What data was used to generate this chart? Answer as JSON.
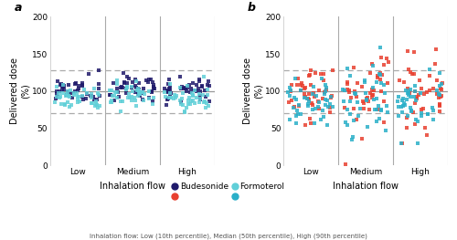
{
  "title_a": "a",
  "title_b": "b",
  "ylabel": "Delivered dose\n(%)",
  "xlabel": "Inhalation flow",
  "xtick_labels": [
    "Low",
    "Medium",
    "High"
  ],
  "xtick_positions": [
    1,
    2,
    3
  ],
  "ylim": [
    0,
    200
  ],
  "yticks": [
    0,
    50,
    100,
    150,
    200
  ],
  "hline_median": 100,
  "hline_upper": 128,
  "hline_lower": 70,
  "vline_positions": [
    1.5,
    2.5,
    3.5
  ],
  "color_a_budesonide": "#1f1a6b",
  "color_a_formoterol": "#60cfd8",
  "color_b_budesonide": "#e84030",
  "color_b_formoterol": "#2aafc8",
  "legend_label_bud": "Budesonide",
  "legend_label_form": "Formoterol",
  "footnote": "Inhalation flow: Low (10th percentile), Median (50th percentile), High (90th percentile)",
  "n_points_per_group": 45,
  "means_a_bud": [
    101,
    103,
    101
  ],
  "stds_a_bud": [
    8,
    9,
    8
  ],
  "means_a_form": [
    91,
    93,
    92
  ],
  "stds_a_form": [
    8,
    10,
    9
  ],
  "means_b_bud": [
    98,
    100,
    98
  ],
  "stds_b_bud": [
    16,
    28,
    24
  ],
  "means_b_form": [
    88,
    90,
    86
  ],
  "stds_b_form": [
    17,
    24,
    20
  ],
  "seed_a": 42,
  "seed_b": 7
}
